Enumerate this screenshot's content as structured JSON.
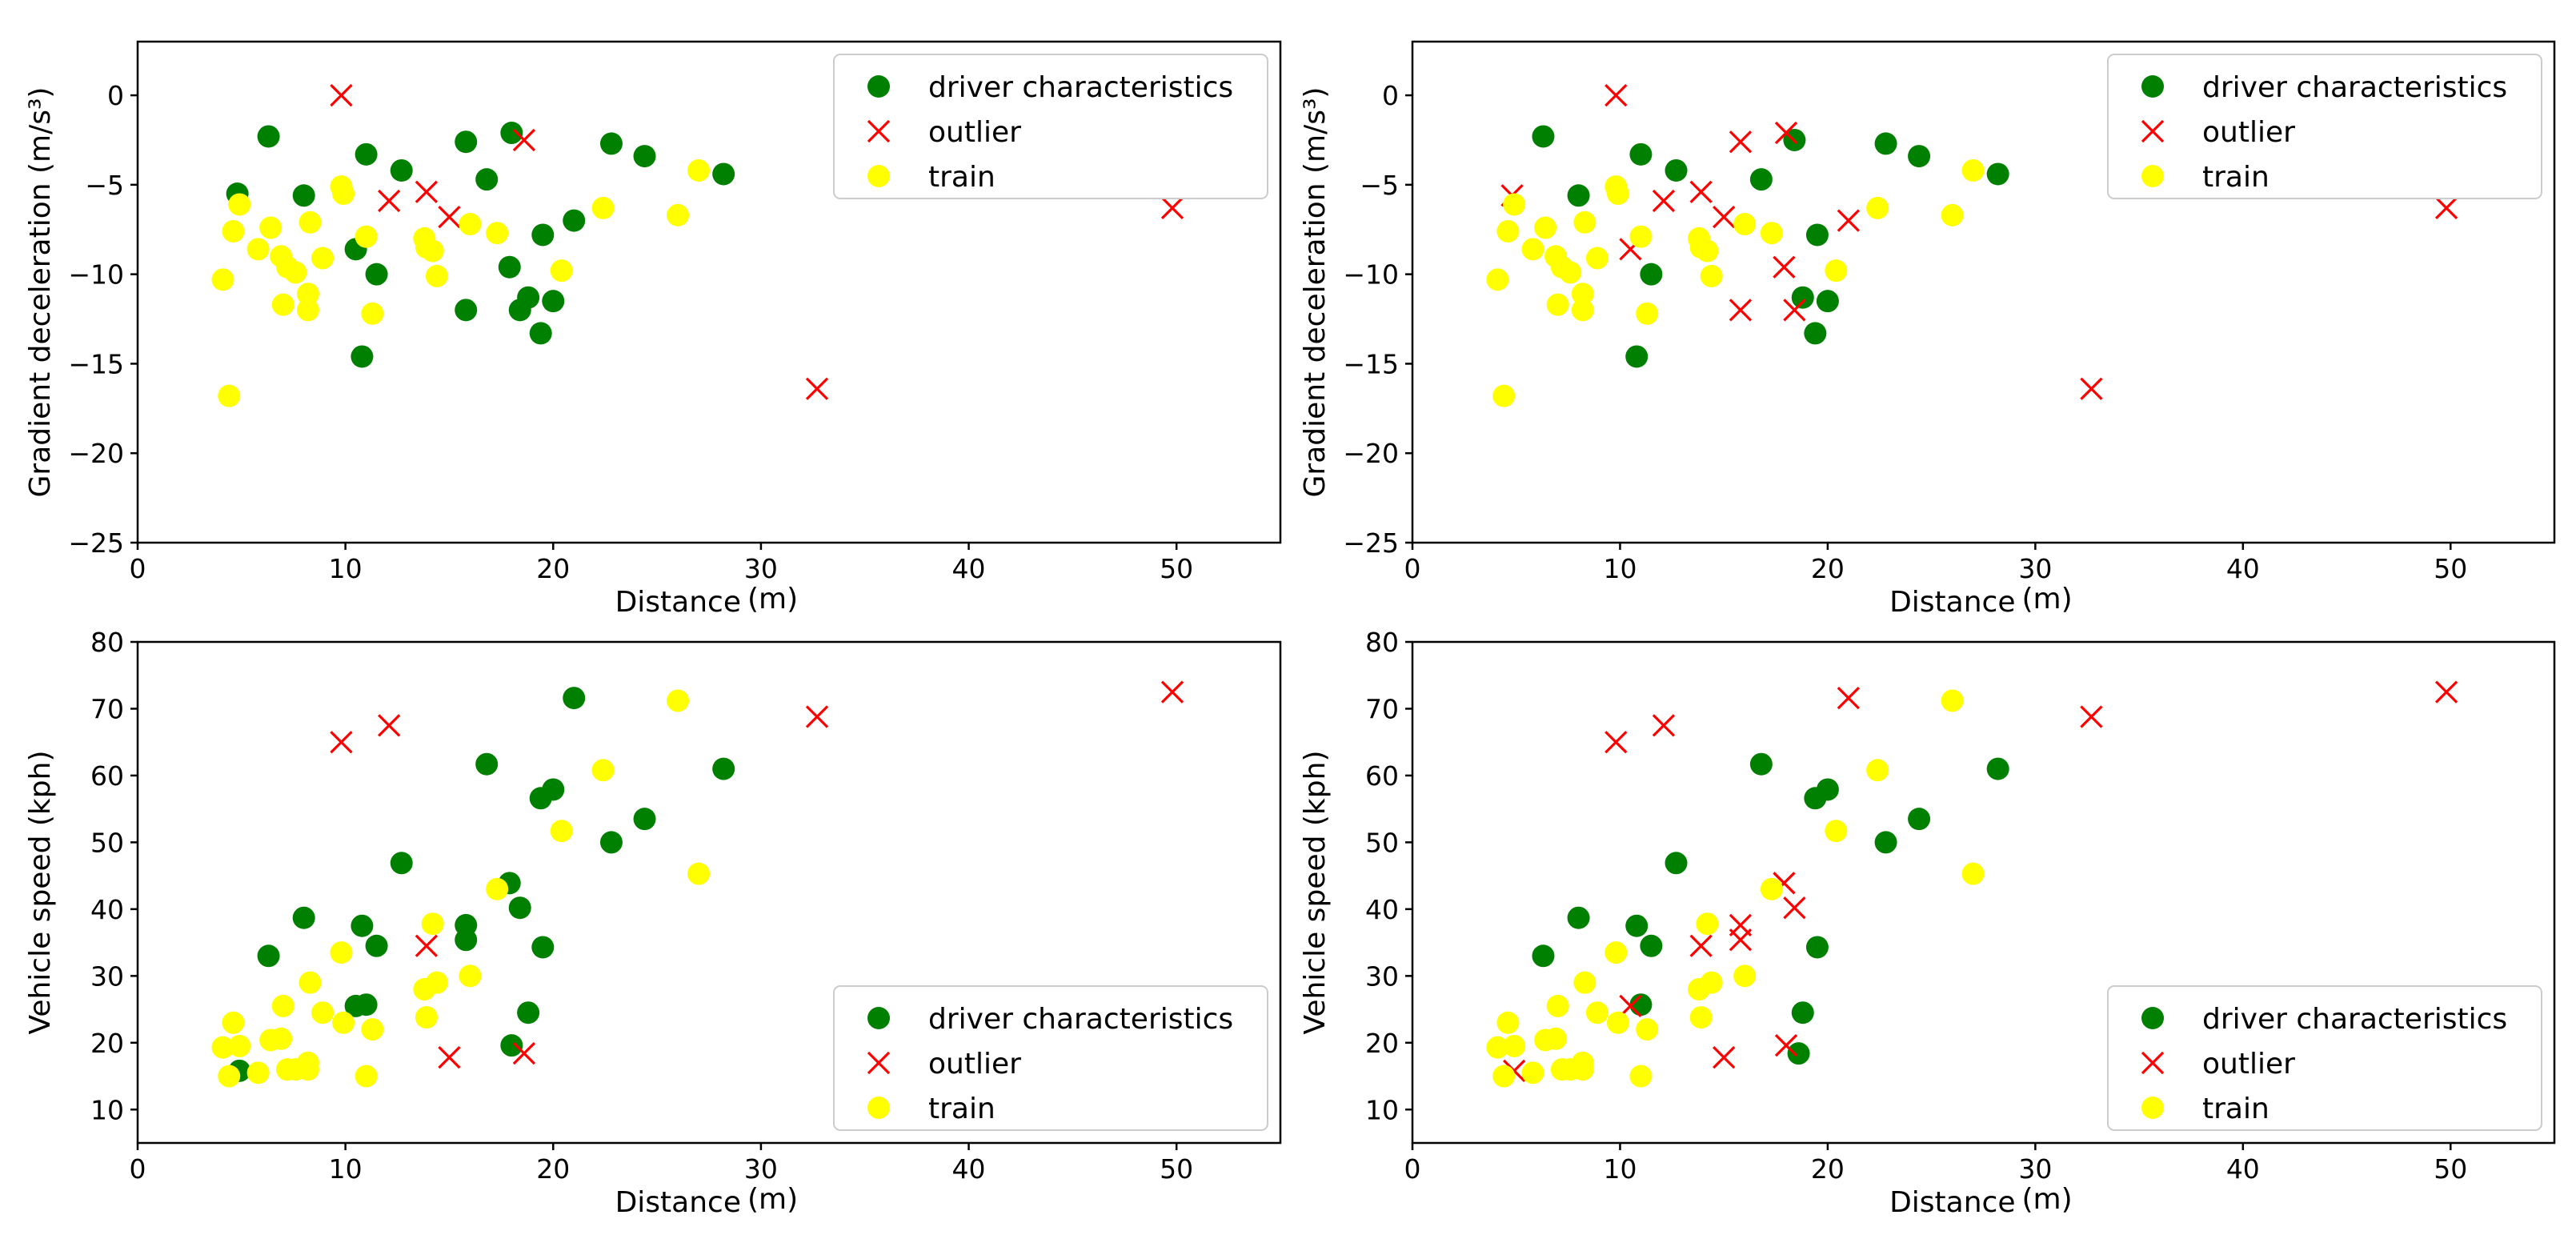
{
  "colors": {
    "driver": "#008000",
    "outlier": "#ff0000",
    "train": "#ffff00"
  },
  "chart_data": [
    {
      "type": "scatter",
      "id": "tl",
      "xlabel": "Distance",
      "xunit": "(m)",
      "ylabel": "Gradient deceleration (m/s³)",
      "xlim": [
        0,
        55
      ],
      "ylim": [
        -25,
        3
      ],
      "xticks": [
        "0",
        "10",
        "20",
        "30",
        "40",
        "50"
      ],
      "yticks": [
        "0",
        "−5",
        "−10",
        "−15",
        "−20",
        "−25"
      ],
      "legend": [
        "driver characteristics",
        "outlier",
        "train"
      ],
      "legend_position": "top-right",
      "series": [
        {
          "name": "driver characteristics",
          "points": [
            [
              6.3,
              -2.3
            ],
            [
              4.8,
              -5.5
            ],
            [
              8.0,
              -5.6
            ],
            [
              11.0,
              -3.3
            ],
            [
              12.7,
              -4.2
            ],
            [
              10.5,
              -8.6
            ],
            [
              11.5,
              -10.0
            ],
            [
              10.8,
              -14.6
            ],
            [
              15.8,
              -2.6
            ],
            [
              16.8,
              -4.7
            ],
            [
              18.0,
              -2.1
            ],
            [
              17.9,
              -9.6
            ],
            [
              18.4,
              -12.0
            ],
            [
              18.8,
              -11.3
            ],
            [
              19.5,
              -7.8
            ],
            [
              19.4,
              -13.3
            ],
            [
              20.0,
              -11.5
            ],
            [
              21.0,
              -7.0
            ],
            [
              22.8,
              -2.7
            ],
            [
              24.4,
              -3.4
            ],
            [
              28.2,
              -4.4
            ],
            [
              15.8,
              -12.0
            ]
          ]
        },
        {
          "name": "outlier",
          "points": [
            [
              9.8,
              0.0
            ],
            [
              12.1,
              -5.9
            ],
            [
              13.9,
              -5.4
            ],
            [
              15.0,
              -6.8
            ],
            [
              18.6,
              -2.5
            ],
            [
              32.7,
              -16.4
            ],
            [
              49.8,
              -6.3
            ]
          ]
        },
        {
          "name": "train",
          "points": [
            [
              4.9,
              -6.1
            ],
            [
              4.6,
              -7.6
            ],
            [
              4.1,
              -10.3
            ],
            [
              4.4,
              -16.8
            ],
            [
              5.8,
              -8.6
            ],
            [
              6.4,
              -7.4
            ],
            [
              6.9,
              -9.0
            ],
            [
              7.2,
              -9.6
            ],
            [
              7.0,
              -11.7
            ],
            [
              7.6,
              -9.9
            ],
            [
              8.3,
              -7.1
            ],
            [
              8.2,
              -11.1
            ],
            [
              8.2,
              -12.0
            ],
            [
              8.9,
              -9.1
            ],
            [
              9.8,
              -5.1
            ],
            [
              9.9,
              -5.5
            ],
            [
              11.0,
              -7.9
            ],
            [
              11.3,
              -12.2
            ],
            [
              13.8,
              -8.0
            ],
            [
              13.9,
              -8.5
            ],
            [
              14.2,
              -8.7
            ],
            [
              14.4,
              -10.1
            ],
            [
              16.0,
              -7.2
            ],
            [
              17.3,
              -7.7
            ],
            [
              20.4,
              -9.8
            ],
            [
              22.4,
              -6.3
            ],
            [
              26.0,
              -6.7
            ],
            [
              27.0,
              -4.2
            ]
          ]
        }
      ]
    },
    {
      "type": "scatter",
      "id": "tr",
      "xlabel": "Distance",
      "xunit": "(m)",
      "ylabel": "Gradient deceleration (m/s³)",
      "xlim": [
        0,
        55
      ],
      "ylim": [
        -25,
        3
      ],
      "xticks": [
        "0",
        "10",
        "20",
        "30",
        "40",
        "50"
      ],
      "yticks": [
        "0",
        "−5",
        "−10",
        "−15",
        "−20",
        "−25"
      ],
      "legend": [
        "driver characteristics",
        "outlier",
        "train"
      ],
      "legend_position": "top-right",
      "series": [
        {
          "name": "driver characteristics",
          "points": [
            [
              6.3,
              -2.3
            ],
            [
              8.0,
              -5.6
            ],
            [
              11.0,
              -3.3
            ],
            [
              12.7,
              -4.2
            ],
            [
              11.5,
              -10.0
            ],
            [
              10.8,
              -14.6
            ],
            [
              16.8,
              -4.7
            ],
            [
              18.4,
              -2.5
            ],
            [
              19.5,
              -7.8
            ],
            [
              18.8,
              -11.3
            ],
            [
              19.4,
              -13.3
            ],
            [
              20.0,
              -11.5
            ],
            [
              22.8,
              -2.7
            ],
            [
              24.4,
              -3.4
            ],
            [
              28.2,
              -4.4
            ]
          ]
        },
        {
          "name": "outlier",
          "points": [
            [
              9.8,
              0.0
            ],
            [
              4.8,
              -5.6
            ],
            [
              10.5,
              -8.6
            ],
            [
              12.1,
              -5.9
            ],
            [
              13.9,
              -5.4
            ],
            [
              15.0,
              -6.8
            ],
            [
              15.8,
              -2.6
            ],
            [
              18.0,
              -2.1
            ],
            [
              17.9,
              -9.6
            ],
            [
              15.8,
              -12.0
            ],
            [
              18.4,
              -12.0
            ],
            [
              21.0,
              -7.0
            ],
            [
              32.7,
              -16.4
            ],
            [
              49.8,
              -6.3
            ]
          ]
        },
        {
          "name": "train",
          "points": [
            [
              4.9,
              -6.1
            ],
            [
              4.6,
              -7.6
            ],
            [
              4.1,
              -10.3
            ],
            [
              4.4,
              -16.8
            ],
            [
              5.8,
              -8.6
            ],
            [
              6.4,
              -7.4
            ],
            [
              6.9,
              -9.0
            ],
            [
              7.2,
              -9.6
            ],
            [
              7.0,
              -11.7
            ],
            [
              7.6,
              -9.9
            ],
            [
              8.3,
              -7.1
            ],
            [
              8.2,
              -11.1
            ],
            [
              8.2,
              -12.0
            ],
            [
              8.9,
              -9.1
            ],
            [
              9.8,
              -5.1
            ],
            [
              9.9,
              -5.5
            ],
            [
              11.0,
              -7.9
            ],
            [
              11.3,
              -12.2
            ],
            [
              13.8,
              -8.0
            ],
            [
              13.9,
              -8.5
            ],
            [
              14.2,
              -8.7
            ],
            [
              14.4,
              -10.1
            ],
            [
              16.0,
              -7.2
            ],
            [
              17.3,
              -7.7
            ],
            [
              20.4,
              -9.8
            ],
            [
              22.4,
              -6.3
            ],
            [
              26.0,
              -6.7
            ],
            [
              27.0,
              -4.2
            ]
          ]
        }
      ]
    },
    {
      "type": "scatter",
      "id": "bl",
      "xlabel": "Distance",
      "xunit": "(m)",
      "ylabel": "Vehicle speed (kph)",
      "xlim": [
        0,
        55
      ],
      "ylim": [
        5,
        80
      ],
      "xticks": [
        "0",
        "10",
        "20",
        "30",
        "40",
        "50"
      ],
      "yticks": [
        "10",
        "20",
        "30",
        "40",
        "50",
        "60",
        "70",
        "80"
      ],
      "legend": [
        "driver characteristics",
        "outlier",
        "train"
      ],
      "legend_position": "bottom-right",
      "series": [
        {
          "name": "driver characteristics",
          "points": [
            [
              4.9,
              15.8
            ],
            [
              6.3,
              33.0
            ],
            [
              8.0,
              38.7
            ],
            [
              10.5,
              25.5
            ],
            [
              10.8,
              37.5
            ],
            [
              11.0,
              25.7
            ],
            [
              11.5,
              34.5
            ],
            [
              12.7,
              46.9
            ],
            [
              15.8,
              37.6
            ],
            [
              15.8,
              35.4
            ],
            [
              16.8,
              61.7
            ],
            [
              17.9,
              43.9
            ],
            [
              18.0,
              19.6
            ],
            [
              18.4,
              40.2
            ],
            [
              18.8,
              24.5
            ],
            [
              19.4,
              56.6
            ],
            [
              19.5,
              34.3
            ],
            [
              20.0,
              57.9
            ],
            [
              21.0,
              71.6
            ],
            [
              22.8,
              50.0
            ],
            [
              24.4,
              53.5
            ],
            [
              28.2,
              61.0
            ]
          ]
        },
        {
          "name": "outlier",
          "points": [
            [
              9.8,
              65.0
            ],
            [
              12.1,
              67.5
            ],
            [
              13.9,
              34.5
            ],
            [
              15.0,
              17.8
            ],
            [
              18.6,
              18.4
            ],
            [
              32.7,
              68.8
            ],
            [
              49.8,
              72.5
            ]
          ]
        },
        {
          "name": "train",
          "points": [
            [
              4.1,
              19.3
            ],
            [
              4.4,
              15.0
            ],
            [
              4.6,
              23.0
            ],
            [
              4.9,
              19.5
            ],
            [
              5.8,
              15.5
            ],
            [
              6.4,
              20.4
            ],
            [
              6.9,
              20.6
            ],
            [
              7.0,
              25.5
            ],
            [
              7.2,
              16.0
            ],
            [
              7.6,
              16.0
            ],
            [
              8.2,
              16.0
            ],
            [
              8.2,
              17.0
            ],
            [
              8.3,
              29.0
            ],
            [
              8.9,
              24.5
            ],
            [
              9.8,
              33.5
            ],
            [
              9.9,
              23.0
            ],
            [
              11.0,
              15.0
            ],
            [
              11.3,
              22.0
            ],
            [
              13.8,
              28.0
            ],
            [
              13.9,
              23.8
            ],
            [
              14.2,
              37.8
            ],
            [
              14.4,
              29.0
            ],
            [
              16.0,
              30.0
            ],
            [
              17.3,
              43.0
            ],
            [
              20.4,
              51.7
            ],
            [
              22.4,
              60.8
            ],
            [
              26.0,
              71.2
            ],
            [
              27.0,
              45.3
            ]
          ]
        }
      ]
    },
    {
      "type": "scatter",
      "id": "br",
      "xlabel": "Distance",
      "xunit": "(m)",
      "ylabel": "Vehicle speed (kph)",
      "xlim": [
        0,
        55
      ],
      "ylim": [
        5,
        80
      ],
      "xticks": [
        "0",
        "10",
        "20",
        "30",
        "40",
        "50"
      ],
      "yticks": [
        "10",
        "20",
        "30",
        "40",
        "50",
        "60",
        "70",
        "80"
      ],
      "legend": [
        "driver characteristics",
        "outlier",
        "train"
      ],
      "legend_position": "bottom-right",
      "series": [
        {
          "name": "driver characteristics",
          "points": [
            [
              6.3,
              33.0
            ],
            [
              8.0,
              38.7
            ],
            [
              10.8,
              37.5
            ],
            [
              11.0,
              25.7
            ],
            [
              11.5,
              34.5
            ],
            [
              12.7,
              46.9
            ],
            [
              16.8,
              61.7
            ],
            [
              18.6,
              18.4
            ],
            [
              18.8,
              24.5
            ],
            [
              19.4,
              56.6
            ],
            [
              19.5,
              34.3
            ],
            [
              20.0,
              57.9
            ],
            [
              22.8,
              50.0
            ],
            [
              24.4,
              53.5
            ],
            [
              28.2,
              61.0
            ]
          ]
        },
        {
          "name": "outlier",
          "points": [
            [
              4.9,
              15.8
            ],
            [
              9.8,
              65.0
            ],
            [
              10.5,
              25.5
            ],
            [
              12.1,
              67.5
            ],
            [
              13.9,
              34.5
            ],
            [
              15.0,
              17.8
            ],
            [
              15.8,
              37.6
            ],
            [
              15.8,
              35.4
            ],
            [
              17.9,
              43.9
            ],
            [
              18.0,
              19.6
            ],
            [
              18.4,
              40.2
            ],
            [
              21.0,
              71.6
            ],
            [
              32.7,
              68.8
            ],
            [
              49.8,
              72.5
            ]
          ]
        },
        {
          "name": "train",
          "points": [
            [
              4.1,
              19.3
            ],
            [
              4.4,
              15.0
            ],
            [
              4.6,
              23.0
            ],
            [
              4.9,
              19.5
            ],
            [
              5.8,
              15.5
            ],
            [
              6.4,
              20.4
            ],
            [
              6.9,
              20.6
            ],
            [
              7.0,
              25.5
            ],
            [
              7.2,
              16.0
            ],
            [
              7.6,
              16.0
            ],
            [
              8.2,
              16.0
            ],
            [
              8.2,
              17.0
            ],
            [
              8.3,
              29.0
            ],
            [
              8.9,
              24.5
            ],
            [
              9.8,
              33.5
            ],
            [
              9.9,
              23.0
            ],
            [
              11.0,
              15.0
            ],
            [
              11.3,
              22.0
            ],
            [
              13.8,
              28.0
            ],
            [
              13.9,
              23.8
            ],
            [
              14.2,
              37.8
            ],
            [
              14.4,
              29.0
            ],
            [
              16.0,
              30.0
            ],
            [
              17.3,
              43.0
            ],
            [
              20.4,
              51.7
            ],
            [
              22.4,
              60.8
            ],
            [
              26.0,
              71.2
            ],
            [
              27.0,
              45.3
            ]
          ]
        }
      ]
    }
  ]
}
